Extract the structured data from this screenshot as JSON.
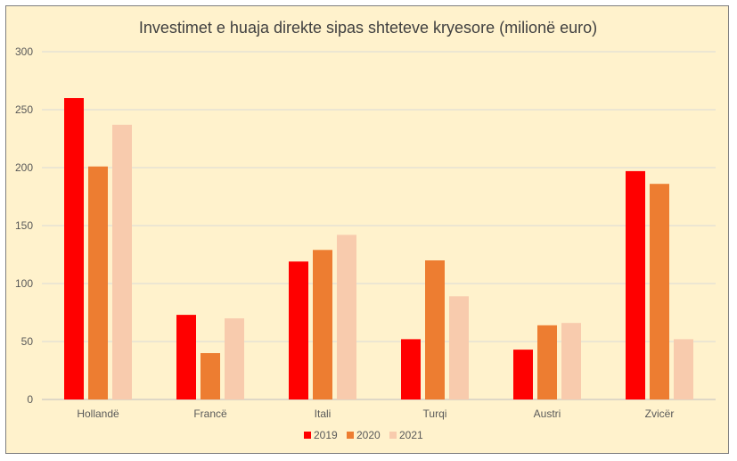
{
  "chart_data": {
    "type": "bar",
    "title": "Investimet e huaja direkte sipas shteteve kryesore (milionë euro)",
    "xlabel": "",
    "ylabel": "",
    "categories": [
      "Hollandë",
      "Francë",
      "Itali",
      "Turqi",
      "Austri",
      "Zvicër"
    ],
    "series": [
      {
        "name": "2019",
        "color": "#ff0000",
        "values": [
          260,
          73,
          119,
          52,
          43,
          197
        ]
      },
      {
        "name": "2020",
        "color": "#ed7d31",
        "values": [
          201,
          40,
          129,
          120,
          64,
          186
        ]
      },
      {
        "name": "2021",
        "color": "#f8cbad",
        "values": [
          237,
          70,
          142,
          89,
          66,
          52
        ]
      }
    ],
    "ylim": [
      0,
      300
    ],
    "yticks": [
      0,
      50,
      100,
      150,
      200,
      250,
      300
    ],
    "grid": true,
    "legend_position": "bottom"
  }
}
